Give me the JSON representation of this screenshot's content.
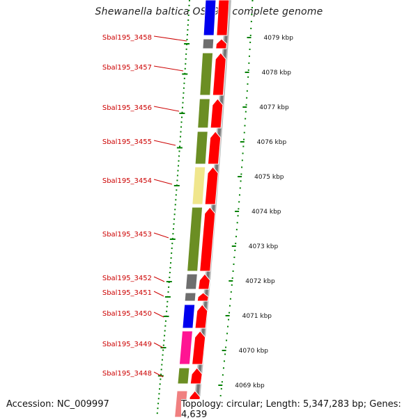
{
  "title": "Shewanella baltica OS195, complete genome",
  "footer": {
    "accession": "Accession: NC_009997",
    "summary": "Topology: circular; Length: 5,347,283 bp; Genes: 4,639"
  },
  "colors": {
    "forward_strand": "#ff0000",
    "green_cog": "#6b8e23",
    "gray_cog": "#6e6e6e",
    "blue_cog": "#0000ee",
    "yellow_cog": "#f0e68c",
    "pink_cog": "#ff1493",
    "light_pink_cog": "#f08080",
    "label_red": "#cc0000",
    "tick_green": "#008000",
    "backbone_gray": "#777777"
  },
  "kbp_labels": [
    "4079 kbp",
    "4078 kbp",
    "4077 kbp",
    "4076 kbp",
    "4075 kbp",
    "4074 kbp",
    "4073 kbp",
    "4072 kbp",
    "4071 kbp",
    "4070 kbp",
    "4069 kbp"
  ],
  "genes": [
    {
      "label": "",
      "cog": "blue_cog"
    },
    {
      "label": "Sbal195_3458",
      "cog": "gray_cog"
    },
    {
      "label": "Sbal195_3457",
      "cog": "green_cog"
    },
    {
      "label": "Sbal195_3456",
      "cog": "green_cog"
    },
    {
      "label": "Sbal195_3455",
      "cog": "green_cog"
    },
    {
      "label": "Sbal195_3454",
      "cog": "yellow_cog"
    },
    {
      "label": "Sbal195_3453",
      "cog": "green_cog"
    },
    {
      "label": "Sbal195_3452",
      "cog": "gray_cog"
    },
    {
      "label": "Sbal195_3451",
      "cog": "gray_cog"
    },
    {
      "label": "Sbal195_3450",
      "cog": "blue_cog"
    },
    {
      "label": "Sbal195_3449",
      "cog": "pink_cog"
    },
    {
      "label": "Sbal195_3448",
      "cog": "green_cog"
    },
    {
      "label": "",
      "cog": "light_pink_cog"
    }
  ]
}
